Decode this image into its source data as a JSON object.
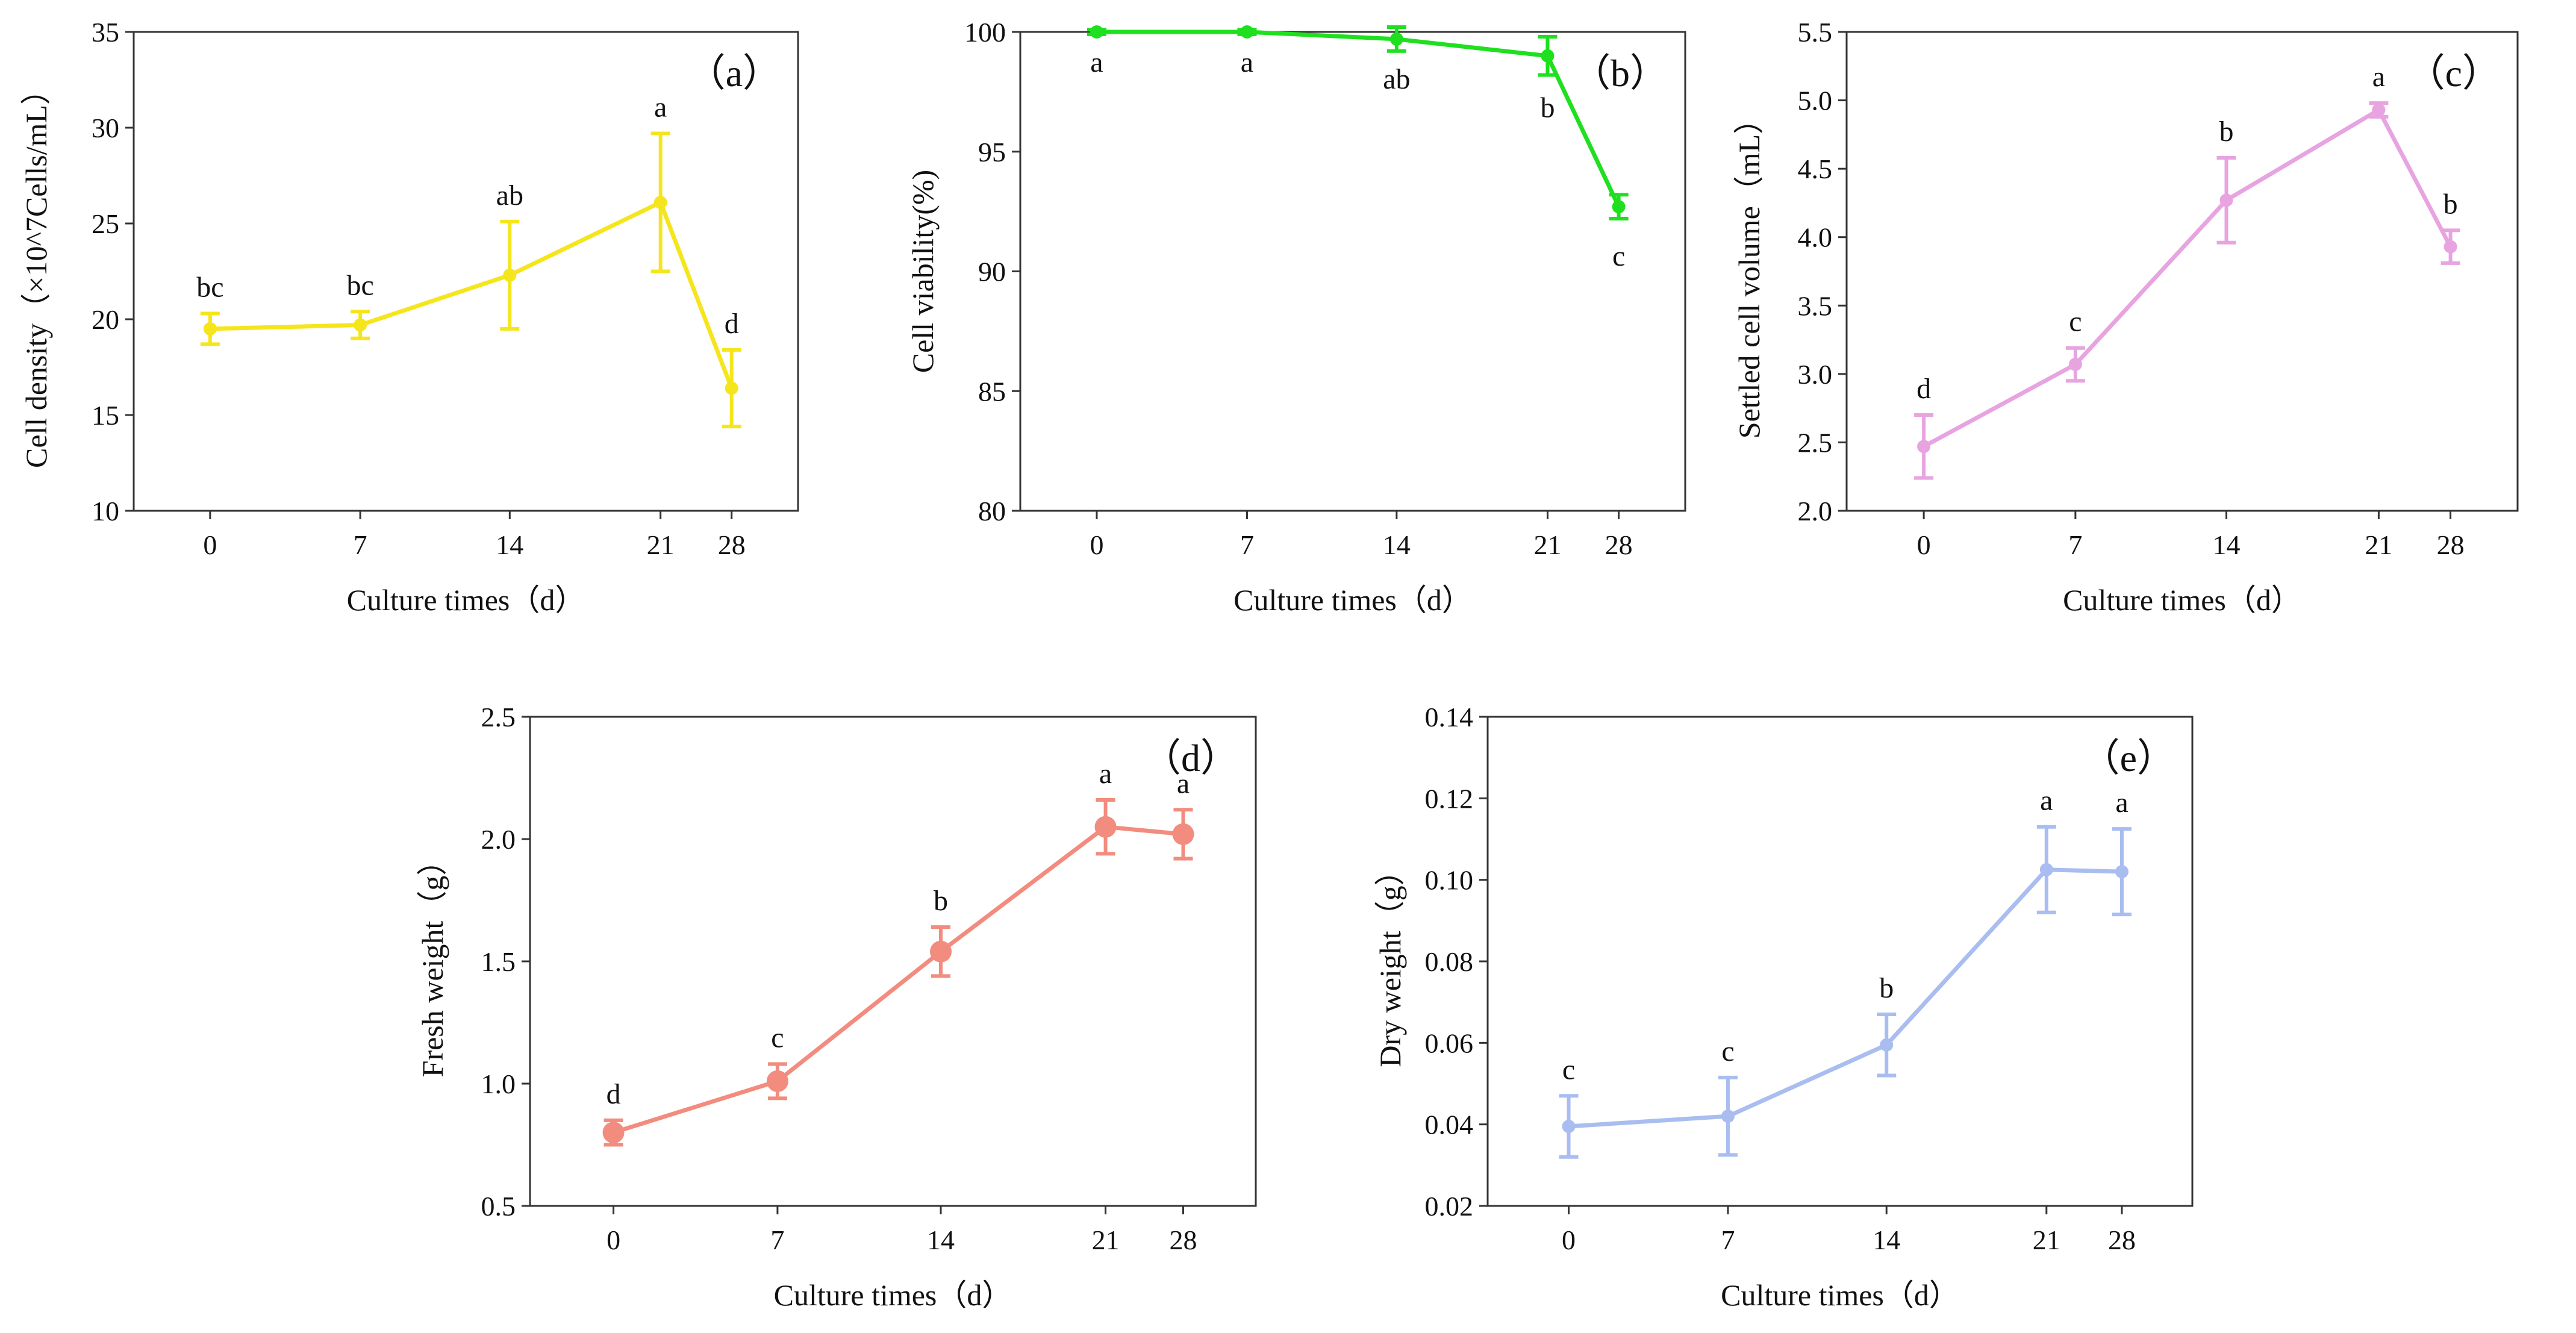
{
  "chart_data": [
    {
      "type": "line",
      "panel_label": "（a）",
      "title": "",
      "xlabel": "Culture times（d）",
      "ylabel": "Cell density（×10^7Cells/mL）",
      "categories": [
        "0",
        "7",
        "14",
        "21",
        "28"
      ],
      "x": [
        0,
        7,
        14,
        21,
        28
      ],
      "values": [
        19.5,
        19.7,
        22.3,
        26.1,
        16.4
      ],
      "errors": [
        0.8,
        0.7,
        2.8,
        3.6,
        2.0
      ],
      "significance": [
        "bc",
        "bc",
        "ab",
        "a",
        "d"
      ],
      "ylim": [
        10,
        35
      ],
      "yticks": [
        10,
        15,
        20,
        25,
        30,
        35
      ],
      "color": "#f5e51c",
      "marker": "small-circle",
      "grid": false
    },
    {
      "type": "line",
      "panel_label": "（b）",
      "title": "",
      "xlabel": "Culture times（d）",
      "ylabel": "Cell viability(%)",
      "categories": [
        "0",
        "7",
        "14",
        "21",
        "28"
      ],
      "x": [
        0,
        7,
        14,
        21,
        28
      ],
      "values": [
        100.0,
        100.0,
        99.7,
        99.0,
        92.7
      ],
      "errors": [
        0.1,
        0.1,
        0.5,
        0.8,
        0.5
      ],
      "significance": [
        "a",
        "a",
        "ab",
        "b",
        "c"
      ],
      "ylim": [
        80,
        100
      ],
      "yticks": [
        80,
        85,
        90,
        95,
        100
      ],
      "color": "#1ee01e",
      "marker": "small-circle",
      "grid": false
    },
    {
      "type": "line",
      "panel_label": "（c）",
      "title": "",
      "xlabel": "Culture times（d）",
      "ylabel": "Settled cell volume（mL）",
      "categories": [
        "0",
        "7",
        "14",
        "21",
        "28"
      ],
      "x": [
        0,
        7,
        14,
        21,
        28
      ],
      "values": [
        2.47,
        3.07,
        4.27,
        4.93,
        3.93
      ],
      "errors": [
        0.23,
        0.12,
        0.31,
        0.05,
        0.12
      ],
      "significance": [
        "d",
        "c",
        "b",
        "a",
        "b"
      ],
      "ylim": [
        2.0,
        5.5
      ],
      "yticks": [
        2.0,
        2.5,
        3.0,
        3.5,
        4.0,
        4.5,
        5.0,
        5.5
      ],
      "color": "#e7a4e1",
      "marker": "small-circle",
      "grid": false
    },
    {
      "type": "line",
      "panel_label": "（d）",
      "title": "",
      "xlabel": "Culture times（d）",
      "ylabel": "Fresh weight（g）",
      "categories": [
        "0",
        "7",
        "14",
        "21",
        "28"
      ],
      "x": [
        0,
        7,
        14,
        21,
        28
      ],
      "values": [
        0.8,
        1.01,
        1.54,
        2.05,
        2.02
      ],
      "errors": [
        0.05,
        0.07,
        0.1,
        0.11,
        0.1
      ],
      "significance": [
        "d",
        "c",
        "b",
        "a",
        "a"
      ],
      "ylim": [
        0.5,
        2.5
      ],
      "yticks": [
        0.5,
        1.0,
        1.5,
        2.0,
        2.5
      ],
      "color": "#f28c7e",
      "marker": "large-circle",
      "grid": false
    },
    {
      "type": "line",
      "panel_label": "（e）",
      "title": "",
      "xlabel": "Culture times（d）",
      "ylabel": "Dry weight（g）",
      "categories": [
        "0",
        "7",
        "14",
        "21",
        "28"
      ],
      "x": [
        0,
        7,
        14,
        21,
        28
      ],
      "values": [
        0.0395,
        0.042,
        0.0595,
        0.1025,
        0.102
      ],
      "errors": [
        0.0075,
        0.0095,
        0.0075,
        0.0105,
        0.0105
      ],
      "significance": [
        "c",
        "c",
        "b",
        "a",
        "a"
      ],
      "ylim": [
        0.02,
        0.14
      ],
      "yticks": [
        0.02,
        0.04,
        0.06,
        0.08,
        0.1,
        0.12,
        0.14
      ],
      "color": "#a9bdf0",
      "marker": "small-circle",
      "grid": false
    }
  ]
}
